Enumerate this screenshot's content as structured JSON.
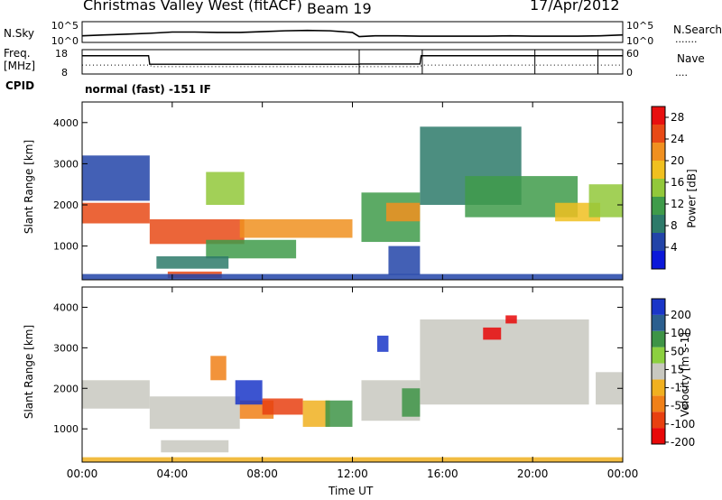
{
  "header": {
    "station": "Christmas Valley West (fitACF)",
    "beam": "Beam 19",
    "date": "17/Apr/2012"
  },
  "left_labels": {
    "nsky": "N.Sky",
    "freq_line1": "Freq.",
    "freq_line2": "[MHz]",
    "cpid": "CPID"
  },
  "right_labels": {
    "nsearch": "N.Search",
    "nave": "Nave"
  },
  "mode_text": "normal (fast) -151 IF",
  "chart_data": [
    {
      "type": "line",
      "panel": "noise",
      "ylabel": "N.Sky",
      "y2label": "N.Search",
      "y_ticks": [
        "10^5",
        "10^0"
      ],
      "y2_ticks": [
        "10^5",
        "10^0"
      ],
      "series": [
        {
          "name": "N.Sky",
          "style": "solid",
          "x": [
            0,
            1,
            2,
            3,
            4,
            5,
            6,
            7,
            8,
            9,
            10,
            11,
            12,
            12.3,
            13,
            14,
            15,
            16,
            17,
            18,
            19,
            20,
            21,
            22,
            23,
            24
          ],
          "y": [
            1.6,
            1.8,
            2.0,
            2.2,
            2.5,
            2.5,
            2.4,
            2.4,
            2.6,
            2.8,
            2.9,
            2.8,
            2.4,
            1.4,
            1.6,
            1.6,
            1.5,
            1.5,
            1.5,
            1.5,
            1.6,
            1.5,
            1.5,
            1.5,
            1.6,
            1.8
          ]
        }
      ]
    },
    {
      "type": "line",
      "panel": "frequency",
      "ylabel": "Freq. [MHz]",
      "y2label": "Nave",
      "y_ticks": [
        18,
        8
      ],
      "y2_ticks": [
        60,
        0
      ],
      "series": [
        {
          "name": "Freq.",
          "style": "solid",
          "x": [
            0,
            2.95,
            3.0,
            12.3,
            12.35,
            15.0,
            15.05,
            24
          ],
          "y": [
            15.5,
            15.5,
            12.0,
            12.0,
            12.1,
            12.1,
            15.5,
            15.5
          ]
        },
        {
          "name": "Nave",
          "style": "dotted",
          "x": [
            0,
            3,
            3.1,
            15,
            15.1,
            24
          ],
          "y": [
            22,
            22,
            18,
            18,
            22,
            22
          ]
        }
      ]
    },
    {
      "type": "heatmap",
      "panel": "power",
      "ylabel": "Slant Range [km]",
      "yticks": [
        1000,
        2000,
        3000,
        4000
      ],
      "ylim": [
        180,
        4500
      ],
      "xlim": [
        0,
        24
      ],
      "colorbar": {
        "label": "Power [dB]",
        "ticks": [
          4,
          8,
          12,
          16,
          20,
          24,
          28
        ],
        "range": [
          0,
          30
        ],
        "colors": [
          "#0b18d9",
          "#2244a8",
          "#2d7a6a",
          "#3f9b4a",
          "#92c83a",
          "#f0c020",
          "#f09020",
          "#e84a16",
          "#e81010"
        ]
      },
      "bands": [
        {
          "x0": 0.0,
          "x1": 3.0,
          "r0": 1550,
          "r1": 2050,
          "power": 24
        },
        {
          "x0": 0.0,
          "x1": 3.0,
          "r0": 2100,
          "r1": 3200,
          "power": 6
        },
        {
          "x0": 3.0,
          "x1": 7.2,
          "r0": 1050,
          "r1": 1650,
          "power": 25
        },
        {
          "x0": 7.0,
          "x1": 12.0,
          "r0": 1200,
          "r1": 1650,
          "power": 23
        },
        {
          "x0": 5.5,
          "x1": 9.5,
          "r0": 700,
          "r1": 1150,
          "power": 12
        },
        {
          "x0": 3.3,
          "x1": 6.5,
          "r0": 450,
          "r1": 750,
          "power": 9
        },
        {
          "x0": 3.8,
          "x1": 6.2,
          "r0": 220,
          "r1": 380,
          "power": 26
        },
        {
          "x0": 5.5,
          "x1": 7.2,
          "r0": 2000,
          "r1": 2800,
          "power": 15
        },
        {
          "x0": 12.4,
          "x1": 15.0,
          "r0": 1100,
          "r1": 2300,
          "power": 11
        },
        {
          "x0": 13.5,
          "x1": 15.0,
          "r0": 1600,
          "r1": 2050,
          "power": 22
        },
        {
          "x0": 13.6,
          "x1": 15.0,
          "r0": 300,
          "r1": 1000,
          "power": 6
        },
        {
          "x0": 15.0,
          "x1": 19.5,
          "r0": 2000,
          "r1": 3900,
          "power": 8
        },
        {
          "x0": 17.0,
          "x1": 22.0,
          "r0": 1700,
          "r1": 2700,
          "power": 10
        },
        {
          "x0": 21.0,
          "x1": 23.0,
          "r0": 1600,
          "r1": 2050,
          "power": 18
        },
        {
          "x0": 22.5,
          "x1": 24.0,
          "r0": 1700,
          "r1": 2500,
          "power": 14
        },
        {
          "x0": 0.0,
          "x1": 24.0,
          "r0": 180,
          "r1": 320,
          "power": 5
        }
      ]
    },
    {
      "type": "heatmap",
      "panel": "velocity",
      "ylabel": "Slant Range [km]",
      "yticks": [
        1000,
        2000,
        3000,
        4000
      ],
      "ylim": [
        180,
        4500
      ],
      "xlim": [
        0,
        24
      ],
      "xticks": [
        "00:00",
        "04:00",
        "08:00",
        "12:00",
        "16:00",
        "20:00",
        "00:00"
      ],
      "xlabel": "Time UT",
      "colorbar": {
        "label": "Velocity [m s-1]",
        "ticks": [
          "200",
          "100",
          "50",
          "15",
          "-15",
          "-50",
          "-100",
          "-200"
        ],
        "colors": [
          "#1a36c8",
          "#2b5f8f",
          "#3e9446",
          "#8cd040",
          "#c8c8c0",
          "#f0b020",
          "#f08018",
          "#e84010",
          "#e80808"
        ]
      },
      "bands": [
        {
          "x0": 0.0,
          "x1": 3.0,
          "r0": 1500,
          "r1": 2200,
          "vel": 0
        },
        {
          "x0": 3.0,
          "x1": 7.0,
          "r0": 1000,
          "r1": 1800,
          "vel": 0
        },
        {
          "x0": 7.0,
          "x1": 8.5,
          "r0": 1250,
          "r1": 1700,
          "vel": -60
        },
        {
          "x0": 8.0,
          "x1": 9.8,
          "r0": 1350,
          "r1": 1750,
          "vel": -120
        },
        {
          "x0": 9.8,
          "x1": 11.0,
          "r0": 1050,
          "r1": 1700,
          "vel": -45
        },
        {
          "x0": 10.8,
          "x1": 12.0,
          "r0": 1050,
          "r1": 1700,
          "vel": 40
        },
        {
          "x0": 6.8,
          "x1": 8.0,
          "r0": 1600,
          "r1": 2200,
          "vel": 180
        },
        {
          "x0": 5.7,
          "x1": 6.4,
          "r0": 2200,
          "r1": 2800,
          "vel": -80
        },
        {
          "x0": 3.5,
          "x1": 6.5,
          "r0": 420,
          "r1": 720,
          "vel": 0
        },
        {
          "x0": 12.4,
          "x1": 15.0,
          "r0": 1200,
          "r1": 2200,
          "vel": 0
        },
        {
          "x0": 13.1,
          "x1": 13.6,
          "r0": 2900,
          "r1": 3300,
          "vel": 180
        },
        {
          "x0": 14.2,
          "x1": 15.0,
          "r0": 1300,
          "r1": 2000,
          "vel": 45
        },
        {
          "x0": 15.0,
          "x1": 22.5,
          "r0": 1600,
          "r1": 3700,
          "vel": 0
        },
        {
          "x0": 17.8,
          "x1": 18.6,
          "r0": 3200,
          "r1": 3500,
          "vel": -200
        },
        {
          "x0": 18.8,
          "x1": 19.3,
          "r0": 3600,
          "r1": 3800,
          "vel": -200
        },
        {
          "x0": 22.8,
          "x1": 24.0,
          "r0": 1600,
          "r1": 2400,
          "vel": 0
        },
        {
          "x0": 0.0,
          "x1": 24.0,
          "r0": 180,
          "r1": 300,
          "vel": -40
        }
      ]
    }
  ]
}
